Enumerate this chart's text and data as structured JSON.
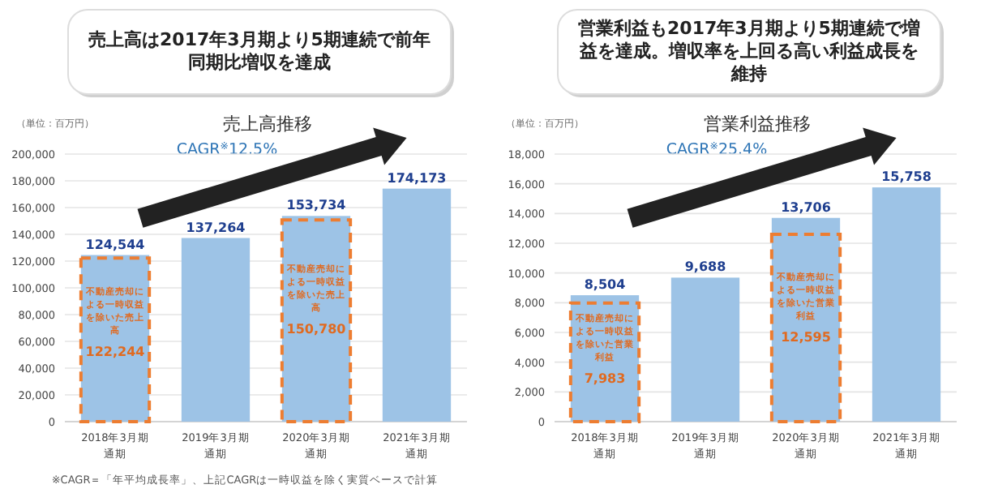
{
  "chart_data": [
    {
      "type": "bar",
      "title": "売上高は2017年3月期より5期連続で前年同期比増収を達成",
      "subtitle": "売上高推移",
      "categories": [
        "2018年3月期通期",
        "2019年3月期通期",
        "2020年3月期通期",
        "2021年3月期通期"
      ],
      "series": [
        {
          "color": "#9dc3e6",
          "values": [
            124544,
            137264,
            153734,
            174173
          ],
          "value_labels": [
            "124,544",
            "137,264",
            "153,734",
            "174,173"
          ]
        },
        {
          "name": "不動産売却による一時収益を除いた売上高",
          "color": "#ed7d31",
          "line_style": "dashed",
          "values": [
            122244,
            null,
            150780,
            null
          ],
          "value_labels": [
            "122,244",
            null,
            "150,780",
            null
          ]
        }
      ],
      "ylim": [
        0,
        200000
      ],
      "yticks": [
        0,
        {
          "value": 20000,
          "label": "20,000"
        },
        {
          "value": 40000,
          "label": "40,000"
        },
        {
          "value": 60000,
          "label": "60,000"
        },
        {
          "value": 80000,
          "label": "80,000"
        },
        {
          "value": 100000,
          "label": "100,000"
        },
        {
          "value": 120000,
          "label": "120,000"
        },
        {
          "value": 140000,
          "label": "140,000"
        },
        {
          "value": 160000,
          "label": "160,000"
        },
        {
          "value": 180000,
          "label": "180,000"
        },
        {
          "value": 200000,
          "label": "200,000"
        }
      ],
      "grid": "y",
      "annotations": [
        "（単位：百万円）",
        "CAGR$^{※}$12.5%",
        "※CAGR＝「年平均成長率」、上記CAGRは一時収益を除く実質ベースで計算"
      ]
    },
    {
      "type": "bar",
      "title": "営業利益も2017年3月期より5期連続で増益を達成。増収率を上回る高い利益成長を維持",
      "subtitle": "営業利益推移",
      "categories": [
        "2018年3月期通期",
        "2019年3月期通期",
        "2020年3月期通期",
        "2021年3月期通期"
      ],
      "series": [
        {
          "color": "#9dc3e6",
          "values": [
            8504,
            9688,
            13706,
            15758
          ],
          "value_labels": [
            "8,504",
            "9,688",
            "13,706",
            "15,758"
          ]
        },
        {
          "name": "不動産売却による一時収益を除いた営業利益",
          "color": "#ed7d31",
          "line_style": "dashed",
          "values": [
            7983,
            null,
            12595,
            null
          ],
          "value_labels": [
            "7,983",
            null,
            "12,595",
            null
          ]
        }
      ],
      "ylim": [
        0,
        18000
      ],
      "yticks": [
        0,
        {
          "value": 2000,
          "label": "2,000"
        },
        {
          "value": 4000,
          "label": "4,000"
        },
        {
          "value": 6000,
          "label": "6,000"
        },
        {
          "value": 8000,
          "label": "8,000"
        },
        {
          "value": 10000,
          "label": "10,000"
        },
        {
          "value": 12000,
          "label": "12,000"
        },
        {
          "value": 14000,
          "label": "14,000"
        },
        {
          "value": 16000,
          "label": "16,000"
        },
        {
          "value": 18000,
          "label": "18,000"
        }
      ],
      "grid": "y",
      "annotations": [
        "（単位：百万円）",
        "CAGR$^{※}$25.4%"
      ]
    }
  ]
}
